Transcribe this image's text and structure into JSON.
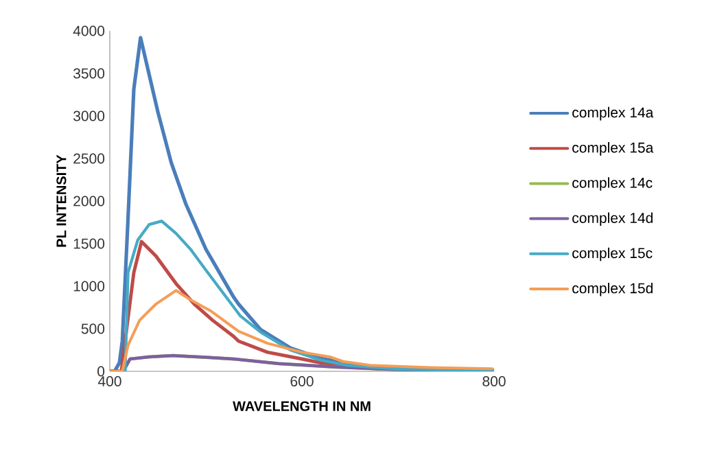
{
  "chart_data": {
    "type": "line",
    "xlabel": "WAVELENGTH  IN NM",
    "ylabel": "PL INTENSITY",
    "xlim": [
      400,
      800
    ],
    "xticks": [
      400,
      600,
      800
    ],
    "ylim": [
      0,
      4000
    ],
    "yticks": [
      0,
      500,
      1000,
      1500,
      2000,
      2500,
      3000,
      3500,
      4000
    ],
    "grid": false,
    "legend": "right",
    "marker": "none",
    "line_style": "solid",
    "series": [
      {
        "name": "complex 14a",
        "color": "#4a7ebb",
        "x": [
          400,
          405,
          410,
          413,
          418.6,
          425,
          432,
          450,
          464,
          479,
          500,
          529,
          534,
          557,
          588,
          620,
          648,
          695,
          800
        ],
        "values": [
          0,
          0,
          100,
          355,
          1700,
          3315,
          3920,
          3050,
          2450,
          1970,
          1435,
          870,
          790,
          490,
          275,
          150,
          90,
          30,
          10
        ]
      },
      {
        "name": "complex 15a",
        "color": "#be4b48",
        "x": [
          400,
          405,
          412,
          425,
          433,
          448,
          469,
          488,
          507,
          529,
          534,
          564,
          600,
          624,
          680,
          800
        ],
        "values": [
          0,
          0,
          0,
          1160,
          1525,
          1355,
          1030,
          790,
          600,
          410,
          355,
          225,
          145,
          90,
          30,
          10
        ]
      },
      {
        "name": "complex 14c",
        "color": "#98b954",
        "x": [
          400,
          405,
          414,
          421,
          441,
          466,
          500,
          529,
          576,
          636,
          700,
          800
        ],
        "values": [
          0,
          0,
          0,
          145,
          170,
          185,
          165,
          145,
          90,
          50,
          20,
          5
        ]
      },
      {
        "name": "complex 14d",
        "color": "#7d60a0",
        "x": [
          400,
          405,
          414,
          421,
          441,
          466,
          500,
          529,
          576,
          636,
          700,
          800
        ],
        "values": [
          0,
          0,
          0,
          145,
          170,
          185,
          165,
          145,
          90,
          50,
          20,
          5
        ]
      },
      {
        "name": "complex 15c",
        "color": "#46aac5",
        "x": [
          400,
          405,
          416,
          419,
          429,
          441,
          454,
          469,
          484,
          500,
          516,
          536,
          557,
          588,
          620,
          648,
          700,
          800
        ],
        "values": [
          0,
          0,
          0,
          1160,
          1540,
          1725,
          1765,
          1620,
          1435,
          1190,
          950,
          650,
          460,
          250,
          130,
          70,
          25,
          5
        ]
      },
      {
        "name": "complex 15d",
        "color": "#f59d56",
        "x": [
          400,
          405,
          413,
          419,
          431,
          448,
          469,
          484,
          505,
          534,
          564,
          600,
          629,
          643,
          671,
          733,
          798
        ],
        "values": [
          0,
          0,
          0,
          305,
          600,
          790,
          950,
          840,
          710,
          470,
          330,
          225,
          170,
          115,
          70,
          45,
          30
        ]
      }
    ]
  }
}
